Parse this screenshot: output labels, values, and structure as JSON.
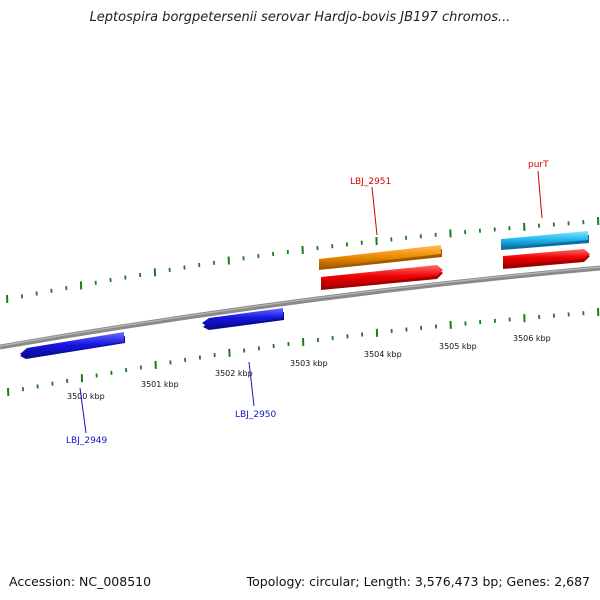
{
  "title": "Leptospira borgpetersenii serovar Hardjo-bovis JB197 chromos...",
  "footer": {
    "accession": "Accession: NC_008510",
    "summary": "Topology: circular; Length: 3,576,473 bp; Genes: 2,687"
  },
  "ruler_labels": [
    "3500 kbp",
    "3501 kbp",
    "3502 kbp",
    "3503 kbp",
    "3504 kbp",
    "3505 kbp",
    "3506 kbp"
  ],
  "genes": [
    {
      "label": "LBJ_2949",
      "strand": "-",
      "color": "#1414e0"
    },
    {
      "label": "LBJ_2950",
      "strand": "-",
      "color": "#1414e0"
    },
    {
      "label": "LBJ_2951",
      "strand": "+",
      "color": "#e00000"
    },
    {
      "label": "purT",
      "strand": "+",
      "color": "#e00000"
    }
  ],
  "features_colors": {
    "backbone": "#8a8a8a",
    "ticks": "#1e7a1e",
    "orange_feature": "#f08c00",
    "cyan_feature": "#22b8ee",
    "label_blue": "#1414c8",
    "label_red": "#d40000"
  }
}
